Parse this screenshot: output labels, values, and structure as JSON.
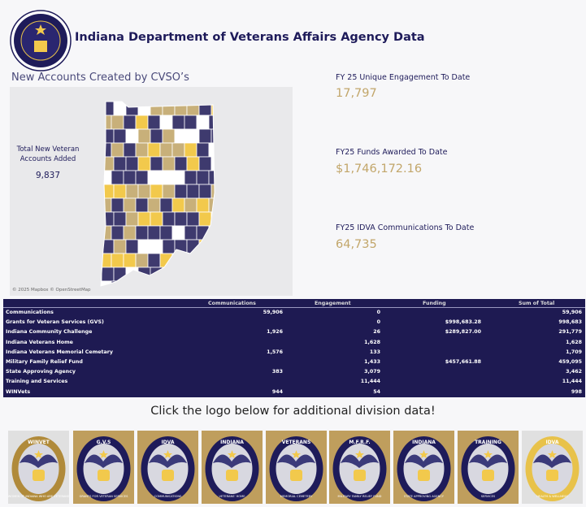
{
  "header": {
    "title": "Indiana Department of Veterans Affairs Agency Data",
    "logo_text": "INDIANA DEPARTMENT OF VETERANS AFFAIRS 1945"
  },
  "map": {
    "title": "New Accounts Created by CVSO’s",
    "label": "Total New Veteran Accounts Added",
    "value": "9,837",
    "attribution": "© 2025 Mapbox © OpenStreetMap",
    "colors": {
      "navy": "#3e3a6e",
      "gold": "#f2c94c",
      "tan": "#c8b07a",
      "white": "#ffffff"
    }
  },
  "kpis": [
    {
      "label": "FY 25 Unique Engagement To Date",
      "value": "17,797"
    },
    {
      "label": "FY25 Funds Awarded To Date",
      "value": "$1,746,172.16"
    },
    {
      "label": "FY25 IDVA Communications To Date",
      "value": "64,735"
    }
  ],
  "table": {
    "columns": [
      "Communications",
      "Engagement",
      "Funding",
      "Sum of Total"
    ],
    "rows": [
      {
        "name": "Communications",
        "communications": "59,906",
        "engagement": "0",
        "funding": "",
        "total": "59,906"
      },
      {
        "name": "Grants for Veteran Services (GVS)",
        "communications": "",
        "engagement": "0",
        "funding": "$998,683.28",
        "total": "998,683"
      },
      {
        "name": "Indiana Community Challenge",
        "communications": "1,926",
        "engagement": "26",
        "funding": "$289,827.00",
        "total": "291,779"
      },
      {
        "name": "Indiana Veterans Home",
        "communications": "",
        "engagement": "1,628",
        "funding": "",
        "total": "1,628"
      },
      {
        "name": "Indiana Veterans Memorial Cemetary",
        "communications": "1,576",
        "engagement": "133",
        "funding": "",
        "total": "1,709"
      },
      {
        "name": "Military Family Relief Fund",
        "communications": "",
        "engagement": "1,433",
        "funding": "$457,661.88",
        "total": "459,095"
      },
      {
        "name": "State Approving Agency",
        "communications": "383",
        "engagement": "3,079",
        "funding": "",
        "total": "3,462"
      },
      {
        "name": "Training and Services",
        "communications": "",
        "engagement": "11,444",
        "funding": "",
        "total": "11,444"
      },
      {
        "name": "WINVets",
        "communications": "944",
        "engagement": "54",
        "funding": "",
        "total": "998"
      }
    ]
  },
  "cta": "Click the logo below for additional division data!",
  "logos": [
    {
      "top": "WINVET",
      "bottom": "WOMEN OF INDIANA WHO ARE VETERANS"
    },
    {
      "top": "G.V.S",
      "bottom": "GRANTS FOR VETERAN SERVICES"
    },
    {
      "top": "IDVA",
      "bottom": "COMMUNICATIONS"
    },
    {
      "top": "INDIANA",
      "bottom": "VETERANS' HOME"
    },
    {
      "top": "VETERANS",
      "bottom": "MEMORIAL CEMETERY"
    },
    {
      "top": "M.F.R.F.",
      "bottom": "MILITARY FAMILY RELIEF FUND"
    },
    {
      "top": "INDIANA",
      "bottom": "STATE APPROVING AGENCY"
    },
    {
      "top": "TRAINING",
      "bottom": "SERVICES"
    },
    {
      "top": "IDVA",
      "bottom": "HEALTH & WELLNESS"
    }
  ]
}
